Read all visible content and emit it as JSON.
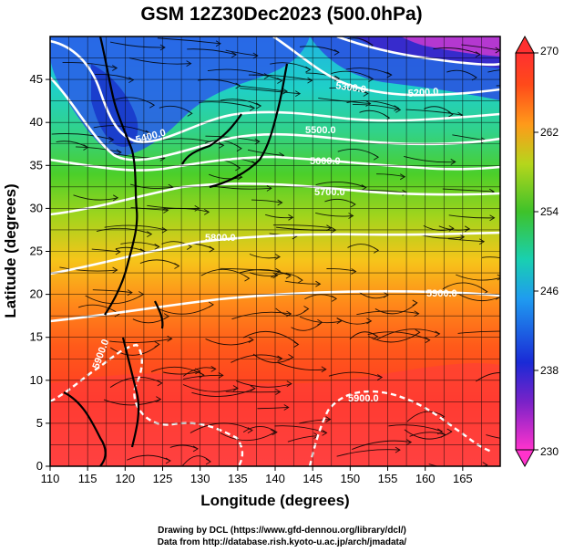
{
  "title": "GSM 12Z30Dec2023 (500.0hPa)",
  "xlabel": "Longitude (degrees)",
  "ylabel": "Latitude  (degrees)",
  "x_ticks": [
    110,
    115,
    120,
    125,
    130,
    135,
    140,
    145,
    150,
    155,
    160,
    165
  ],
  "y_ticks": [
    0,
    5,
    10,
    15,
    20,
    25,
    30,
    35,
    40,
    45
  ],
  "colorbar": {
    "ticks": [
      270,
      262,
      254,
      246,
      238,
      230
    ],
    "min": 230,
    "max": 270
  },
  "contour_labels": [
    {
      "text": "5200.0"
    },
    {
      "text": "5300.0"
    },
    {
      "text": "5400.0"
    },
    {
      "text": "5500.0"
    },
    {
      "text": "5600.0"
    },
    {
      "text": "5700.0"
    },
    {
      "text": "5800.0"
    },
    {
      "text": "5900.0"
    },
    {
      "text": "5900.0"
    },
    {
      "text": "5900.0"
    }
  ],
  "credits": {
    "line1": "Drawing by DCL (https://www.gfd-dennou.org/library/dcl/)",
    "line2": "Data from http://database.rish.kyoto-u.ac.jp/arch/jmadata/"
  }
}
